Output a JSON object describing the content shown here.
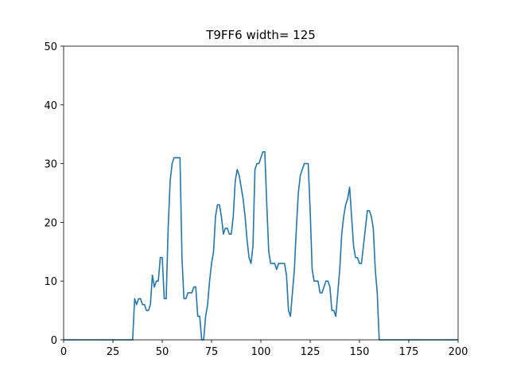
{
  "chart_data": {
    "type": "line",
    "title": "T9FF6 width= 125",
    "xlabel": "",
    "ylabel": "",
    "xlim": [
      0,
      200
    ],
    "ylim": [
      0,
      50
    ],
    "xticks": [
      0,
      25,
      50,
      75,
      100,
      125,
      150,
      175,
      200
    ],
    "yticks": [
      0,
      10,
      20,
      30,
      40,
      50
    ],
    "grid": false,
    "color": "#1f77b4",
    "series": [
      {
        "x": [
          0,
          35,
          36,
          37,
          38,
          39,
          40,
          41,
          42,
          43,
          44,
          45,
          46,
          47,
          48,
          49,
          50,
          51,
          52,
          53,
          54,
          55,
          56,
          57,
          58,
          59,
          60,
          61,
          62,
          63,
          64,
          65,
          66,
          67,
          68,
          69,
          70,
          71,
          72,
          73,
          74,
          75,
          76,
          77,
          78,
          79,
          80,
          81,
          82,
          83,
          84,
          85,
          86,
          87,
          88,
          89,
          90,
          91,
          92,
          93,
          94,
          95,
          96,
          97,
          98,
          99,
          100,
          101,
          102,
          103,
          104,
          105,
          106,
          107,
          108,
          109,
          110,
          111,
          112,
          113,
          114,
          115,
          116,
          117,
          118,
          119,
          120,
          121,
          122,
          123,
          124,
          125,
          126,
          127,
          128,
          129,
          130,
          131,
          132,
          133,
          134,
          135,
          136,
          137,
          138,
          139,
          140,
          141,
          142,
          143,
          144,
          145,
          146,
          147,
          148,
          149,
          150,
          151,
          152,
          153,
          154,
          155,
          156,
          157,
          158,
          159,
          160,
          161,
          200
        ],
        "y": [
          0,
          0,
          7,
          6,
          7,
          7,
          6,
          6,
          5,
          5,
          6,
          11,
          9,
          10,
          10,
          14,
          14,
          7,
          7,
          19,
          27,
          30,
          31,
          31,
          31,
          31,
          14,
          7,
          7,
          8,
          8,
          8,
          9,
          9,
          4,
          4,
          0,
          0,
          4,
          6,
          10,
          13,
          15,
          21,
          23,
          23,
          21,
          18,
          19,
          19,
          18,
          18,
          21,
          27,
          29,
          28,
          26,
          24,
          21,
          17,
          14,
          13,
          16,
          29,
          30,
          30,
          31,
          32,
          32,
          23,
          15,
          13,
          13,
          13,
          12,
          13,
          13,
          13,
          13,
          11,
          5,
          4,
          8,
          12,
          19,
          25,
          28,
          29,
          30,
          30,
          30,
          22,
          12,
          10,
          10,
          10,
          8,
          8,
          9,
          10,
          10,
          9,
          5,
          5,
          4,
          8,
          12,
          18,
          21,
          23,
          24,
          26,
          21,
          16,
          14,
          14,
          13,
          13,
          16,
          19,
          22,
          22,
          21,
          19,
          12,
          8,
          0,
          0,
          0
        ]
      }
    ]
  }
}
